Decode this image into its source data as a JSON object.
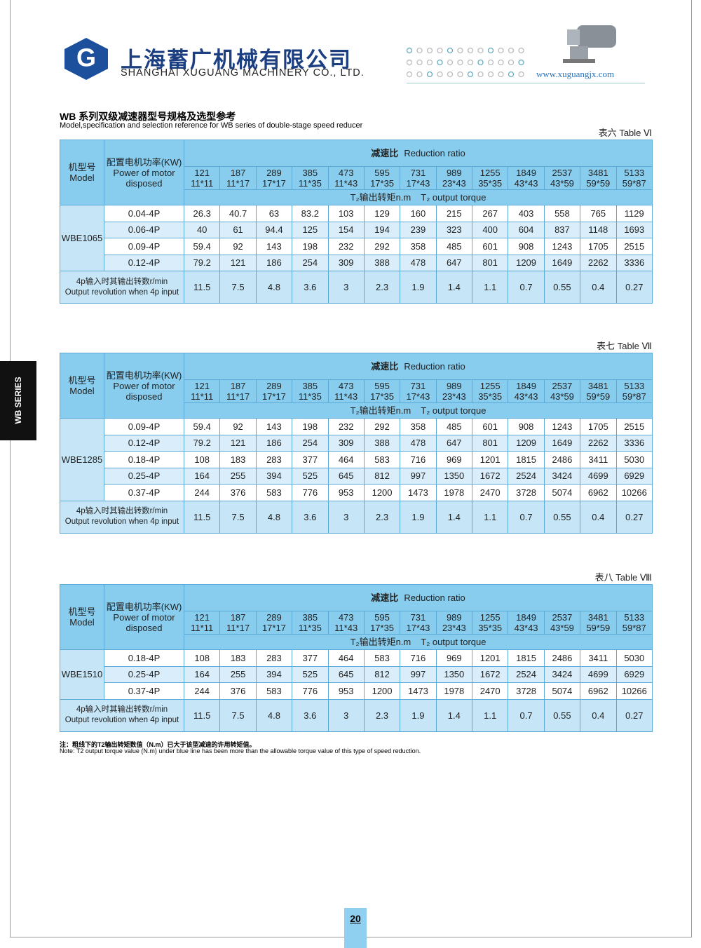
{
  "header": {
    "logo": "G",
    "company_cn": "上海蓄广机械有限公司",
    "company_en": "SHANGHAI XUGUANG MACHINERY CO., LTD.",
    "website": "www.xuguangjx.com"
  },
  "title": {
    "cn": "WB 系列双级减速器型号规格及选型参考",
    "en": "Model,specification and selection reference for WB series of double-stage speed reducer"
  },
  "side_tab": "WB SERIES",
  "columns": {
    "model": [
      "机型号",
      "Model"
    ],
    "power": [
      "配置电机功率(KW)",
      "Power of motor disposed"
    ],
    "ratio_title": [
      "减速比",
      "Reduction ratio"
    ],
    "ratios": [
      "121",
      "187",
      "289",
      "385",
      "473",
      "595",
      "731",
      "989",
      "1255",
      "1849",
      "2537",
      "3481",
      "5133"
    ],
    "ratio_factors": [
      "11*11",
      "11*17",
      "17*17",
      "11*35",
      "11*43",
      "17*35",
      "17*43",
      "23*43",
      "35*35",
      "43*43",
      "43*59",
      "59*59",
      "59*87"
    ],
    "torque_title": [
      "T₂输出转矩n.m",
      "T₂ output torque"
    ],
    "speed_title": [
      "4p输入时其输出转数r/min",
      "Output revolution when 4p input"
    ],
    "speeds": [
      "11.5",
      "7.5",
      "4.8",
      "3.6",
      "3",
      "2.3",
      "1.9",
      "1.4",
      "1.1",
      "0.7",
      "0.55",
      "0.4",
      "0.27"
    ]
  },
  "tables": [
    {
      "label": "表六 Table Ⅵ",
      "model": "WBE1065",
      "rows": [
        {
          "power": "0.04-4P",
          "values": [
            26.3,
            40.7,
            63,
            83.2,
            103,
            129,
            160,
            215,
            267,
            403,
            558,
            765,
            1129
          ]
        },
        {
          "power": "0.06-4P",
          "values": [
            40,
            61,
            94.4,
            125,
            154,
            194,
            239,
            323,
            400,
            604,
            837,
            1148,
            1693
          ]
        },
        {
          "power": "0.09-4P",
          "values": [
            59.4,
            92,
            143,
            198,
            232,
            292,
            358,
            485,
            601,
            908,
            1243,
            1705,
            2515
          ]
        },
        {
          "power": "0.12-4P",
          "values": [
            79.2,
            121,
            186,
            254,
            309,
            388,
            478,
            647,
            801,
            1209,
            1649,
            2262,
            3336
          ]
        }
      ]
    },
    {
      "label": "表七 Table Ⅶ",
      "model": "WBE1285",
      "rows": [
        {
          "power": "0.09-4P",
          "values": [
            59.4,
            92,
            143,
            198,
            232,
            292,
            358,
            485,
            601,
            908,
            1243,
            1705,
            2515
          ]
        },
        {
          "power": "0.12-4P",
          "values": [
            79.2,
            121,
            186,
            254,
            309,
            388,
            478,
            647,
            801,
            1209,
            1649,
            2262,
            3336
          ]
        },
        {
          "power": "0.18-4P",
          "values": [
            108,
            183,
            283,
            377,
            464,
            583,
            716,
            969,
            1201,
            1815,
            2486,
            3411,
            5030
          ]
        },
        {
          "power": "0.25-4P",
          "values": [
            164,
            255,
            394,
            525,
            645,
            812,
            997,
            1350,
            1672,
            2524,
            3424,
            4699,
            6929
          ]
        },
        {
          "power": "0.37-4P",
          "values": [
            244,
            376,
            583,
            776,
            953,
            1200,
            1473,
            1978,
            2470,
            3728,
            5074,
            6962,
            10266
          ]
        }
      ]
    },
    {
      "label": "表八 Table Ⅷ",
      "model": "WBE1510",
      "rows": [
        {
          "power": "0.18-4P",
          "values": [
            108,
            183,
            283,
            377,
            464,
            583,
            716,
            969,
            1201,
            1815,
            2486,
            3411,
            5030
          ]
        },
        {
          "power": "0.25-4P",
          "values": [
            164,
            255,
            394,
            525,
            645,
            812,
            997,
            1350,
            1672,
            2524,
            3424,
            4699,
            6929
          ]
        },
        {
          "power": "0.37-4P",
          "values": [
            244,
            376,
            583,
            776,
            953,
            1200,
            1473,
            1978,
            2470,
            3728,
            5074,
            6962,
            10266
          ]
        }
      ]
    }
  ],
  "note": {
    "cn": "注：粗线下的T2输出转矩数值（N.m）已大于该型减速的许用转矩值。",
    "en": "Note: T2 output torque value (N.m) under blue line has been more than the allowable torque value of this type of speed reduction."
  },
  "page_number": "20"
}
